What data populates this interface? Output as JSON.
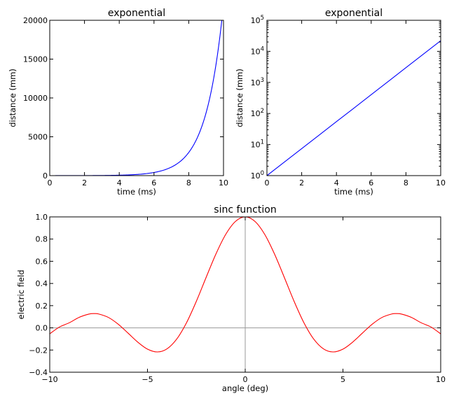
{
  "figure": {
    "background": "#ffffff"
  },
  "chart_data": [
    {
      "id": "linear",
      "type": "line",
      "title": "exponential",
      "xlabel": "time (ms)",
      "ylabel": "distance (mm)",
      "xlim": [
        0,
        10
      ],
      "ylim": [
        0,
        20000
      ],
      "yscale": "linear",
      "xticks": [
        0,
        2,
        4,
        6,
        8,
        10
      ],
      "xtick_labels": [
        "0",
        "2",
        "4",
        "6",
        "8",
        "10"
      ],
      "yticks": [
        0,
        5000,
        10000,
        15000,
        20000
      ],
      "ytick_labels": [
        "0",
        "5000",
        "10000",
        "15000",
        "20000"
      ],
      "grid": false,
      "series": [
        {
          "color": "#0000ff",
          "x": [
            0,
            0.5,
            1,
            1.5,
            2,
            2.5,
            3,
            3.5,
            4,
            4.5,
            5,
            5.5,
            6,
            6.5,
            7,
            7.5,
            8,
            8.25,
            8.5,
            8.75,
            9,
            9.25,
            9.5,
            9.75,
            10
          ],
          "y": [
            1,
            1.64,
            2.7,
            4.48,
            7.39,
            12.2,
            20.1,
            33.1,
            54.6,
            90.0,
            148,
            245,
            403,
            665,
            1097,
            1808,
            2981,
            3827,
            4915,
            6311,
            8103,
            10405,
            13360,
            17154,
            22026
          ]
        }
      ]
    },
    {
      "id": "log",
      "type": "line",
      "title": "exponential",
      "xlabel": "time (ms)",
      "ylabel": "distance (mm)",
      "xlim": [
        0,
        10
      ],
      "ylim": [
        1,
        100000
      ],
      "yscale": "log",
      "xticks": [
        0,
        2,
        4,
        6,
        8,
        10
      ],
      "xtick_labels": [
        "0",
        "2",
        "4",
        "6",
        "8",
        "10"
      ],
      "yticks": [
        1,
        10,
        100,
        1000,
        10000,
        100000
      ],
      "ytick_base": "10",
      "ytick_exponents": [
        "0",
        "1",
        "2",
        "3",
        "4",
        "5"
      ],
      "grid": false,
      "series": [
        {
          "color": "#0000ff",
          "x": [
            0,
            1,
            2,
            3,
            4,
            5,
            6,
            7,
            8,
            9,
            10
          ],
          "y": [
            1,
            2.72,
            7.39,
            20.1,
            54.6,
            148,
            403,
            1097,
            2981,
            8103,
            22026
          ]
        }
      ]
    },
    {
      "id": "sinc",
      "type": "line",
      "title": "sinc function",
      "xlabel": "angle (deg)",
      "ylabel": "electric field",
      "xlim": [
        -10,
        10
      ],
      "ylim": [
        -0.4,
        1.0
      ],
      "yscale": "linear",
      "xticks": [
        -10,
        -5,
        0,
        5,
        10
      ],
      "xtick_labels": [
        "−10",
        "−5",
        "0",
        "5",
        "10"
      ],
      "yticks": [
        -0.4,
        -0.2,
        0.0,
        0.2,
        0.4,
        0.6,
        0.8,
        1.0
      ],
      "ytick_labels": [
        "−0.4",
        "−0.2",
        "0.0",
        "0.2",
        "0.4",
        "0.6",
        "0.8",
        "1.0"
      ],
      "grid": false,
      "reference_lines": {
        "hline_y": 0,
        "vline_x": 0,
        "color": "#999999"
      },
      "series": [
        {
          "color": "#ff0000",
          "x": [
            -10,
            -9.5,
            -9,
            -8.5,
            -8,
            -7.73,
            -7.5,
            -7,
            -6.5,
            -6,
            -5.5,
            -5,
            -4.49,
            -4,
            -3.5,
            -3,
            -2.5,
            -2,
            -1.5,
            -1,
            -0.5,
            0,
            0.5,
            1,
            1.5,
            2,
            2.5,
            3,
            3.5,
            4,
            4.49,
            5,
            5.5,
            6,
            6.5,
            7,
            7.5,
            7.73,
            8,
            8.5,
            9,
            9.5,
            10
          ],
          "y": [
            -0.054,
            0.0079,
            0.0458,
            0.0941,
            0.1237,
            0.1283,
            0.125,
            0.0939,
            0.0332,
            -0.0466,
            -0.1282,
            -0.1918,
            -0.2172,
            -0.1892,
            -0.1002,
            0.047,
            0.2394,
            0.4546,
            0.665,
            0.8415,
            0.9589,
            1.0,
            0.9589,
            0.8415,
            0.665,
            0.4546,
            0.2394,
            0.047,
            -0.1002,
            -0.1892,
            -0.2172,
            -0.1918,
            -0.1282,
            -0.0466,
            0.0332,
            0.0939,
            0.125,
            0.1283,
            0.1237,
            0.0941,
            0.0458,
            0.0079,
            -0.054
          ]
        }
      ]
    }
  ]
}
